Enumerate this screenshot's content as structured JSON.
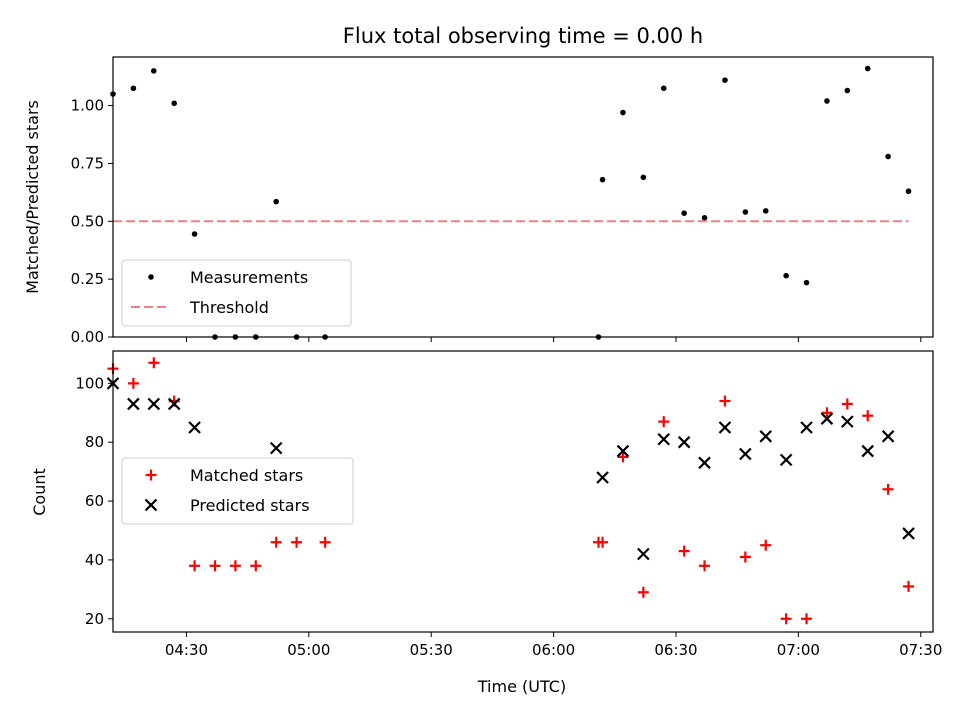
{
  "chart_data": [
    {
      "type": "scatter",
      "title": "Flux total observing time = 0.00 h",
      "ylabel": "Matched/Predicted stars",
      "xlabel": "",
      "x_range": [
        "04:12",
        "07:33"
      ],
      "ylim": [
        0,
        1.21
      ],
      "y_ticks": [
        "0.00",
        "0.25",
        "0.50",
        "0.75",
        "1.00"
      ],
      "x_tick_times": [
        "04:30",
        "05:00",
        "05:30",
        "06:00",
        "06:30",
        "07:00",
        "07:30"
      ],
      "legend_position": "lower-left",
      "series": [
        {
          "name": "Measurements",
          "marker": "dot",
          "color": "#000000",
          "x": [
            "04:12",
            "04:17",
            "04:22",
            "04:27",
            "04:32",
            "04:37",
            "04:42",
            "04:47",
            "04:52",
            "04:57",
            "05:04",
            "06:11",
            "06:12",
            "06:17",
            "06:22",
            "06:27",
            "06:32",
            "06:37",
            "06:42",
            "06:47",
            "06:52",
            "06:57",
            "07:02",
            "07:07",
            "07:12",
            "07:17",
            "07:22",
            "07:27"
          ],
          "y": [
            1.05,
            1.075,
            1.15,
            1.01,
            0.445,
            0.0,
            0.0,
            0.0,
            0.585,
            0.0,
            0.0,
            0.0,
            0.68,
            0.97,
            0.69,
            1.075,
            0.535,
            0.515,
            1.11,
            0.54,
            0.545,
            0.265,
            0.235,
            1.02,
            1.065,
            1.16,
            0.78,
            0.63
          ]
        },
        {
          "name": "Threshold",
          "marker": "dashed-line",
          "color": "#f08080",
          "x": [
            "04:12",
            "07:27"
          ],
          "y": [
            0.5,
            0.5
          ]
        }
      ]
    },
    {
      "type": "scatter",
      "title": "",
      "ylabel": "Count",
      "xlabel": "Time (UTC)",
      "x_range": [
        "04:12",
        "07:33"
      ],
      "ylim": [
        15.5,
        111
      ],
      "y_ticks": [
        "20",
        "40",
        "60",
        "80",
        "100"
      ],
      "x_tick_labels": [
        "04:30",
        "05:00",
        "05:30",
        "06:00",
        "06:30",
        "07:00",
        "07:30"
      ],
      "legend_position": "center-left",
      "series": [
        {
          "name": "Matched stars",
          "marker": "plus",
          "color": "#ff0000",
          "x": [
            "04:12",
            "04:17",
            "04:22",
            "04:27",
            "04:32",
            "04:37",
            "04:42",
            "04:47",
            "04:52",
            "04:57",
            "05:04",
            "06:11",
            "06:12",
            "06:17",
            "06:22",
            "06:27",
            "06:32",
            "06:37",
            "06:42",
            "06:47",
            "06:52",
            "06:57",
            "07:02",
            "07:07",
            "07:12",
            "07:17",
            "07:22",
            "07:27"
          ],
          "y": [
            105,
            100,
            107,
            94,
            38,
            38,
            38,
            38,
            46,
            46,
            46,
            46,
            46,
            75,
            29,
            87,
            43,
            38,
            94,
            41,
            45,
            20,
            20,
            90,
            93,
            89,
            64,
            31
          ]
        },
        {
          "name": "Predicted stars",
          "marker": "x",
          "color": "#000000",
          "x": [
            "04:12",
            "04:17",
            "04:22",
            "04:27",
            "04:32",
            "04:52",
            "06:12",
            "06:17",
            "06:22",
            "06:27",
            "06:32",
            "06:37",
            "06:42",
            "06:47",
            "06:52",
            "06:57",
            "07:02",
            "07:07",
            "07:12",
            "07:17",
            "07:22",
            "07:27"
          ],
          "y": [
            100,
            93,
            93,
            93,
            85,
            78,
            68,
            77,
            42,
            81,
            80,
            73,
            85,
            76,
            82,
            74,
            85,
            88,
            87,
            77,
            82,
            49
          ]
        }
      ]
    }
  ]
}
